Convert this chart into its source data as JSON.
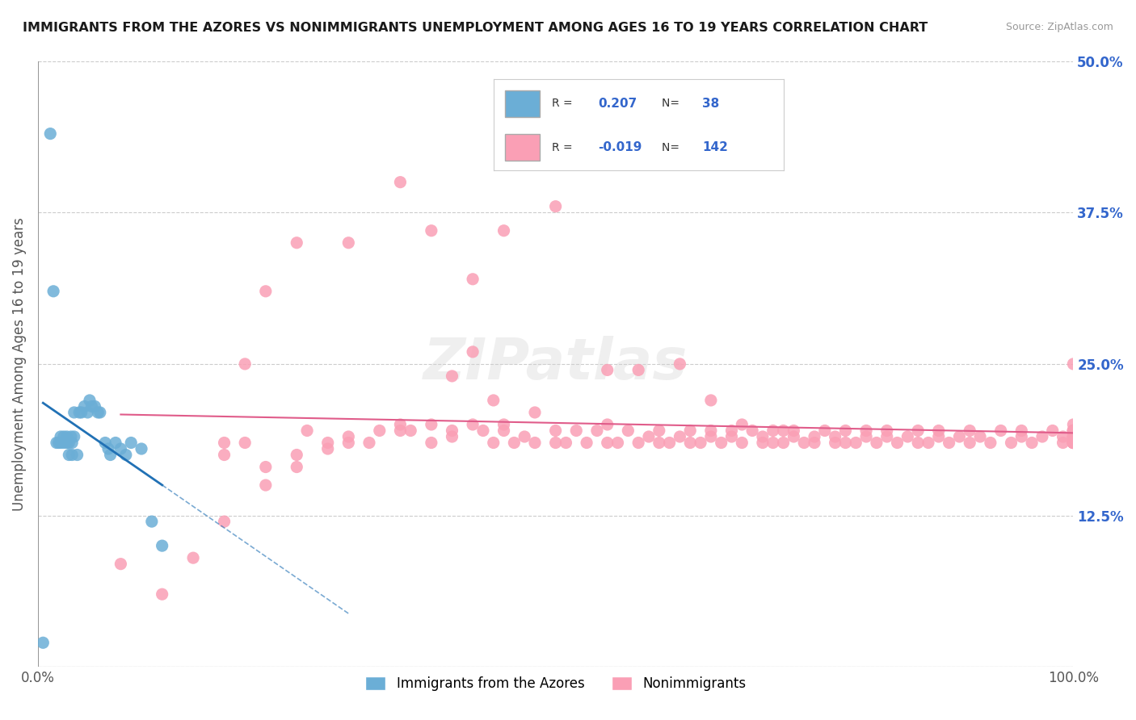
{
  "title": "IMMIGRANTS FROM THE AZORES VS NONIMMIGRANTS UNEMPLOYMENT AMONG AGES 16 TO 19 YEARS CORRELATION CHART",
  "source": "Source: ZipAtlas.com",
  "ylabel": "Unemployment Among Ages 16 to 19 years",
  "xlabel": "",
  "xlim": [
    0.0,
    1.0
  ],
  "ylim": [
    0.0,
    0.5
  ],
  "yticks": [
    0.0,
    0.125,
    0.25,
    0.375,
    0.5
  ],
  "ytick_labels": [
    "",
    "12.5%",
    "25.0%",
    "37.5%",
    "50.0%"
  ],
  "xtick_labels": [
    "0.0%",
    "",
    "",
    "",
    "",
    "",
    "",
    "",
    "",
    "",
    "100.0%"
  ],
  "legend_blue_label": "Immigrants from the Azores",
  "legend_pink_label": "Nonimmigrants",
  "R_blue": 0.207,
  "N_blue": 38,
  "R_pink": -0.019,
  "N_pink": 142,
  "blue_color": "#6baed6",
  "blue_line_color": "#2171b5",
  "pink_color": "#fa9fb5",
  "pink_line_color": "#e05c8a",
  "watermark": "ZIPatlas",
  "background_color": "#ffffff",
  "grid_color": "#cccccc",
  "blue_scatter_x": [
    0.005,
    0.012,
    0.015,
    0.018,
    0.02,
    0.022,
    0.022,
    0.025,
    0.025,
    0.028,
    0.028,
    0.03,
    0.03,
    0.032,
    0.033,
    0.033,
    0.035,
    0.035,
    0.038,
    0.04,
    0.042,
    0.045,
    0.048,
    0.05,
    0.052,
    0.055,
    0.058,
    0.06,
    0.065,
    0.068,
    0.07,
    0.075,
    0.08,
    0.085,
    0.09,
    0.1,
    0.11,
    0.12
  ],
  "blue_scatter_y": [
    0.02,
    0.44,
    0.31,
    0.185,
    0.185,
    0.185,
    0.19,
    0.185,
    0.19,
    0.185,
    0.19,
    0.175,
    0.185,
    0.19,
    0.175,
    0.185,
    0.19,
    0.21,
    0.175,
    0.21,
    0.21,
    0.215,
    0.21,
    0.22,
    0.215,
    0.215,
    0.21,
    0.21,
    0.185,
    0.18,
    0.175,
    0.185,
    0.18,
    0.175,
    0.185,
    0.18,
    0.12,
    0.1
  ],
  "pink_scatter_x": [
    0.08,
    0.12,
    0.15,
    0.18,
    0.18,
    0.2,
    0.22,
    0.22,
    0.25,
    0.25,
    0.26,
    0.28,
    0.3,
    0.3,
    0.32,
    0.33,
    0.35,
    0.35,
    0.36,
    0.38,
    0.38,
    0.4,
    0.4,
    0.42,
    0.43,
    0.44,
    0.45,
    0.45,
    0.46,
    0.47,
    0.48,
    0.48,
    0.5,
    0.5,
    0.51,
    0.52,
    0.53,
    0.54,
    0.55,
    0.55,
    0.56,
    0.57,
    0.58,
    0.59,
    0.6,
    0.6,
    0.61,
    0.62,
    0.63,
    0.63,
    0.64,
    0.65,
    0.65,
    0.66,
    0.67,
    0.67,
    0.68,
    0.69,
    0.7,
    0.7,
    0.71,
    0.71,
    0.72,
    0.73,
    0.73,
    0.74,
    0.75,
    0.75,
    0.76,
    0.77,
    0.77,
    0.78,
    0.78,
    0.79,
    0.8,
    0.8,
    0.81,
    0.82,
    0.82,
    0.83,
    0.84,
    0.85,
    0.85,
    0.86,
    0.87,
    0.87,
    0.88,
    0.89,
    0.9,
    0.9,
    0.91,
    0.92,
    0.93,
    0.94,
    0.95,
    0.95,
    0.96,
    0.97,
    0.98,
    0.99,
    0.99,
    1.0,
    1.0,
    1.0,
    1.0,
    1.0,
    1.0,
    1.0,
    1.0,
    1.0,
    1.0,
    1.0,
    1.0,
    1.0,
    1.0,
    1.0,
    1.0,
    1.0,
    1.0,
    1.0,
    1.0,
    1.0,
    0.5,
    0.45,
    0.42,
    0.38,
    0.35,
    0.3,
    0.28,
    0.25,
    0.22,
    0.2,
    0.18,
    0.4,
    0.42,
    0.44,
    0.55,
    0.58,
    0.62,
    0.65,
    0.68,
    0.72
  ],
  "pink_scatter_y": [
    0.085,
    0.06,
    0.09,
    0.175,
    0.185,
    0.185,
    0.15,
    0.165,
    0.165,
    0.175,
    0.195,
    0.185,
    0.185,
    0.19,
    0.185,
    0.195,
    0.195,
    0.2,
    0.195,
    0.185,
    0.2,
    0.19,
    0.195,
    0.2,
    0.195,
    0.185,
    0.195,
    0.2,
    0.185,
    0.19,
    0.185,
    0.21,
    0.185,
    0.195,
    0.185,
    0.195,
    0.185,
    0.195,
    0.185,
    0.2,
    0.185,
    0.195,
    0.185,
    0.19,
    0.185,
    0.195,
    0.185,
    0.19,
    0.185,
    0.195,
    0.185,
    0.19,
    0.195,
    0.185,
    0.19,
    0.195,
    0.185,
    0.195,
    0.185,
    0.19,
    0.185,
    0.195,
    0.185,
    0.19,
    0.195,
    0.185,
    0.185,
    0.19,
    0.195,
    0.185,
    0.19,
    0.185,
    0.195,
    0.185,
    0.19,
    0.195,
    0.185,
    0.19,
    0.195,
    0.185,
    0.19,
    0.185,
    0.195,
    0.185,
    0.19,
    0.195,
    0.185,
    0.19,
    0.195,
    0.185,
    0.19,
    0.185,
    0.195,
    0.185,
    0.19,
    0.195,
    0.185,
    0.19,
    0.195,
    0.185,
    0.19,
    0.185,
    0.195,
    0.185,
    0.19,
    0.2,
    0.195,
    0.25,
    0.185,
    0.19,
    0.185,
    0.195,
    0.185,
    0.19,
    0.195,
    0.185,
    0.19,
    0.185,
    0.195,
    0.185,
    0.19,
    0.195,
    0.38,
    0.36,
    0.32,
    0.36,
    0.4,
    0.35,
    0.18,
    0.35,
    0.31,
    0.25,
    0.12,
    0.24,
    0.26,
    0.22,
    0.245,
    0.245,
    0.25,
    0.22,
    0.2,
    0.195
  ]
}
